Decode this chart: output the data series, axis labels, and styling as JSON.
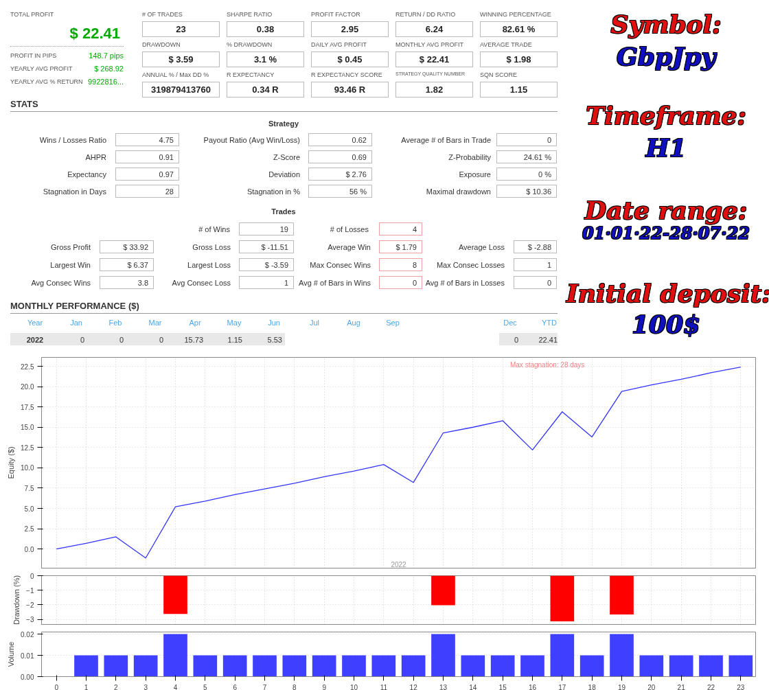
{
  "chart_data": [
    {
      "type": "other",
      "annotations": [
        "TOTAL PROFIT",
        "$ 22.41",
        "PROFIT IN PIPS",
        "148.7 pips",
        "YEARLY AVG PROFIT",
        "$ 268.92",
        "YEARLY AVG % RETURN",
        "9922816..."
      ]
    },
    {
      "type": "other",
      "annotations": [
        "# OF TRADES",
        "23",
        "SHARPE RATIO",
        "0.38",
        "PROFIT FACTOR",
        "2.95",
        "RETURN / DD RATIO",
        "6.24",
        "WINNING PERCENTAGE",
        "82.61 %",
        "DRAWDOWN",
        "$ 3.59",
        "% DRAWDOWN",
        "3.1 %",
        "DAILY AVG PROFIT",
        "$ 0.45",
        "MONTHLY AVG PROFIT",
        "$ 22.41",
        "AVERAGE TRADE",
        "$ 1.98",
        "ANNUAL % / Max DD %",
        "319879413760",
        "R EXPECTANCY",
        "0.34 R",
        "R EXPECTANCY SCORE",
        "93.46 R",
        "STRATEGY QUALITY NUMBER",
        "1.82",
        "SQN SCORE",
        "1.15"
      ]
    },
    {
      "type": "other",
      "title": "STATS",
      "subtitle": "Strategy",
      "annotations": [
        "Wins / Losses Ratio",
        "4.75",
        "Payout Ratio (Avg Win/Loss)",
        "0.62",
        "Average # of Bars in Trade",
        "0",
        "AHPR",
        "0.91",
        "Z-Score",
        "0.69",
        "Z-Probability",
        "24.61 %",
        "Expectancy",
        "0.97",
        "Deviation",
        "$ 2.76",
        "Exposure",
        "0 %",
        "Stagnation in Days",
        "28",
        "Stagnation in %",
        "56 %",
        "Maximal drawdown",
        "$ 10.36",
        "Trades",
        "# of Wins",
        "19",
        "# of Losses",
        "4",
        "Gross Profit",
        "$ 33.92",
        "Gross Loss",
        "$ -11.51",
        "Average Win",
        "$ 1.79",
        "Average Loss",
        "$ -2.88",
        "Largest Win",
        "$ 6.37",
        "Largest Loss",
        "$ -3.59",
        "Max Consec Wins",
        "8",
        "Max Consec Losses",
        "1",
        "Avg Consec Wins",
        "3.8",
        "Avg Consec Loss",
        "1",
        "Avg # of Bars in Wins",
        "0",
        "Avg # of Bars in Losses",
        "0"
      ]
    },
    {
      "type": "other",
      "title": "MONTHLY PERFORMANCE ($)",
      "annotations": [
        "Year",
        "Jan",
        "Feb",
        "Mar",
        "Apr",
        "May",
        "Jun",
        "Jul",
        "Aug",
        "Sep",
        "Dec",
        "YTD",
        "2022",
        "0",
        "0",
        "0",
        "15.73",
        "1.15",
        "5.53",
        "0",
        "22.41"
      ]
    },
    {
      "type": "other",
      "annotations": [
        "Symbol:",
        "GbpJpy",
        "Timeframe:",
        "H1",
        "Date range:",
        "01·01·22-28·07·22",
        "Initial deposit:",
        "100$"
      ]
    },
    {
      "type": "line",
      "ylabel": "Equity ($)",
      "x": [
        0,
        1,
        2,
        3,
        4,
        5,
        6,
        7,
        8,
        9,
        10,
        11,
        12,
        13,
        14,
        15,
        16,
        17,
        18,
        19,
        20,
        21,
        22,
        23
      ],
      "xlim": [
        -0.5,
        23.5
      ],
      "xticks": [
        0,
        1,
        2,
        3,
        4,
        5,
        6,
        7,
        8,
        9,
        10,
        11,
        12,
        13,
        14,
        15,
        16,
        17,
        18,
        19,
        20,
        21,
        22,
        23
      ],
      "ylim": [
        -2.35,
        23.6
      ],
      "yticks": [
        {
          "value": 0,
          "label": "0.0"
        },
        2.5,
        {
          "value": 5,
          "label": "5.0"
        },
        7.5,
        {
          "value": 10,
          "label": "10.0"
        },
        12.5,
        {
          "value": 15,
          "label": "15.0"
        },
        17.5,
        {
          "value": 20,
          "label": "20.0"
        },
        22.5
      ],
      "tick_labels": "y",
      "grid": true,
      "annotations": [
        "2022",
        "Max stagnation: 28 days"
      ],
      "series": [
        {
          "color": "#3333ff",
          "values": [
            0,
            0.7,
            1.5,
            -1.1,
            5.2,
            5.9,
            6.7,
            7.4,
            8.1,
            8.9,
            9.6,
            10.4,
            8.2,
            14.3,
            15.0,
            15.8,
            12.2,
            16.9,
            13.8,
            19.4,
            20.2,
            20.9,
            21.7,
            22.4
          ]
        }
      ]
    },
    {
      "type": "bar",
      "ylabel": "Drawdown (%)",
      "x": [
        4,
        13,
        17,
        19
      ],
      "xlim": [
        -0.5,
        23.5
      ],
      "xticks": [
        0,
        1,
        2,
        3,
        4,
        5,
        6,
        7,
        8,
        9,
        10,
        11,
        12,
        13,
        14,
        15,
        16,
        17,
        18,
        19,
        20,
        21,
        22,
        23
      ],
      "ylim": [
        -3.35,
        0
      ],
      "yticks": [
        -3,
        -2,
        -1,
        0
      ],
      "tick_labels": "y",
      "grid": true,
      "series": [
        {
          "color": "#ff0000",
          "values": [
            -2.63,
            -2.03,
            -3.14,
            -2.67
          ]
        }
      ]
    },
    {
      "type": "bar",
      "ylabel": "Volume",
      "x": [
        1,
        2,
        3,
        4,
        5,
        6,
        7,
        8,
        9,
        10,
        11,
        12,
        13,
        14,
        15,
        16,
        17,
        18,
        19,
        20,
        21,
        22,
        23
      ],
      "xlim": [
        -0.5,
        23.5
      ],
      "xticks": [
        0,
        1,
        2,
        3,
        4,
        5,
        6,
        7,
        8,
        9,
        10,
        11,
        12,
        13,
        14,
        15,
        16,
        17,
        18,
        19,
        20,
        21,
        22,
        23
      ],
      "ylim": [
        0,
        0.021
      ],
      "yticks": [
        {
          "value": 0,
          "label": "0.00"
        },
        0.01,
        0.02
      ],
      "grid": "y",
      "series": [
        {
          "color": "#3f3fff",
          "values": [
            0.01,
            0.01,
            0.01,
            0.02,
            0.01,
            0.01,
            0.01,
            0.01,
            0.01,
            0.01,
            0.01,
            0.01,
            0.02,
            0.01,
            0.01,
            0.01,
            0.02,
            0.01,
            0.02,
            0.01,
            0.01,
            0.01,
            0.01
          ]
        }
      ]
    }
  ]
}
